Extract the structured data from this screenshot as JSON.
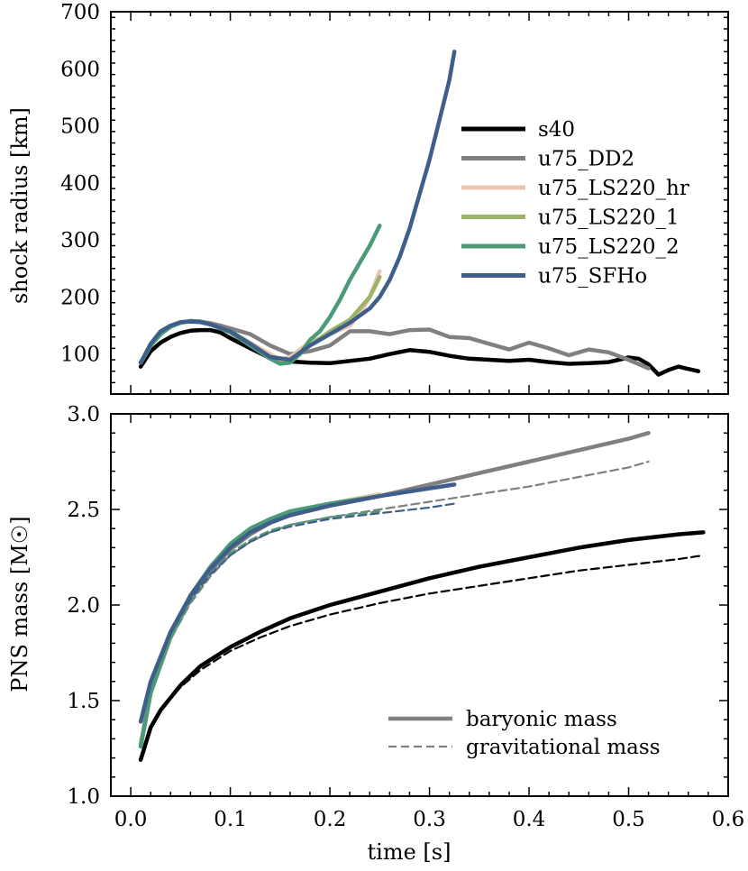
{
  "chart_data": [
    {
      "type": "line",
      "panel": "top",
      "ylabel": "shock radius [km]",
      "xlim": [
        -0.02,
        0.6
      ],
      "ylim": [
        30,
        700
      ],
      "yticks": [
        100,
        200,
        300,
        400,
        500,
        600,
        700
      ],
      "legend_position": "center-right",
      "series": [
        {
          "name": "s40",
          "color": "#000000",
          "x": [
            0.01,
            0.02,
            0.03,
            0.04,
            0.05,
            0.06,
            0.07,
            0.08,
            0.09,
            0.1,
            0.12,
            0.14,
            0.16,
            0.18,
            0.2,
            0.22,
            0.24,
            0.26,
            0.28,
            0.3,
            0.32,
            0.34,
            0.36,
            0.38,
            0.4,
            0.42,
            0.44,
            0.46,
            0.48,
            0.5,
            0.51,
            0.52,
            0.53,
            0.54,
            0.55,
            0.56,
            0.57
          ],
          "y": [
            78,
            105,
            120,
            130,
            137,
            141,
            142,
            142,
            138,
            128,
            110,
            93,
            87,
            85,
            84,
            88,
            92,
            100,
            107,
            104,
            97,
            92,
            90,
            88,
            90,
            86,
            83,
            84,
            86,
            94,
            92,
            82,
            64,
            72,
            78,
            74,
            70
          ]
        },
        {
          "name": "u75_DD2",
          "color": "#808080",
          "x": [
            0.01,
            0.02,
            0.03,
            0.04,
            0.05,
            0.06,
            0.07,
            0.08,
            0.09,
            0.1,
            0.12,
            0.14,
            0.16,
            0.18,
            0.2,
            0.22,
            0.24,
            0.26,
            0.28,
            0.3,
            0.32,
            0.34,
            0.36,
            0.38,
            0.4,
            0.42,
            0.44,
            0.46,
            0.48,
            0.5,
            0.52
          ],
          "y": [
            85,
            115,
            135,
            148,
            155,
            158,
            157,
            154,
            150,
            145,
            135,
            115,
            100,
            105,
            115,
            140,
            140,
            135,
            142,
            143,
            130,
            128,
            118,
            108,
            120,
            110,
            98,
            108,
            103,
            90,
            75
          ]
        },
        {
          "name": "u75_LS220_hr",
          "color": "#e8c6b0",
          "x": [
            0.01,
            0.02,
            0.03,
            0.04,
            0.05,
            0.06,
            0.07,
            0.08,
            0.1,
            0.12,
            0.14,
            0.15,
            0.16,
            0.17,
            0.18,
            0.2,
            0.22,
            0.23,
            0.24,
            0.25
          ],
          "y": [
            85,
            115,
            135,
            148,
            155,
            158,
            157,
            152,
            140,
            120,
            100,
            90,
            95,
            108,
            120,
            135,
            150,
            170,
            200,
            245
          ]
        },
        {
          "name": "u75_LS220_1",
          "color": "#9db369",
          "x": [
            0.01,
            0.02,
            0.03,
            0.04,
            0.05,
            0.06,
            0.07,
            0.08,
            0.1,
            0.12,
            0.14,
            0.15,
            0.16,
            0.17,
            0.18,
            0.2,
            0.21,
            0.22,
            0.23,
            0.24,
            0.25
          ],
          "y": [
            85,
            115,
            135,
            148,
            155,
            158,
            157,
            152,
            140,
            118,
            95,
            85,
            90,
            103,
            115,
            140,
            150,
            160,
            180,
            200,
            235
          ]
        },
        {
          "name": "u75_LS220_2",
          "color": "#4b9a78",
          "x": [
            0.01,
            0.02,
            0.03,
            0.04,
            0.05,
            0.06,
            0.07,
            0.08,
            0.1,
            0.12,
            0.14,
            0.15,
            0.16,
            0.17,
            0.18,
            0.19,
            0.2,
            0.21,
            0.22,
            0.23,
            0.24,
            0.25
          ],
          "y": [
            85,
            115,
            135,
            148,
            155,
            158,
            157,
            152,
            138,
            115,
            92,
            83,
            85,
            100,
            125,
            140,
            165,
            195,
            230,
            260,
            290,
            325
          ]
        },
        {
          "name": "u75_SFHo",
          "color": "#3f5f8a",
          "x": [
            0.01,
            0.02,
            0.03,
            0.04,
            0.05,
            0.06,
            0.07,
            0.08,
            0.1,
            0.12,
            0.14,
            0.16,
            0.18,
            0.2,
            0.22,
            0.24,
            0.25,
            0.26,
            0.27,
            0.28,
            0.29,
            0.3,
            0.31,
            0.32,
            0.325
          ],
          "y": [
            85,
            118,
            140,
            150,
            156,
            157,
            156,
            152,
            140,
            118,
            95,
            90,
            115,
            135,
            155,
            180,
            200,
            230,
            270,
            320,
            380,
            440,
            510,
            580,
            630
          ]
        }
      ]
    },
    {
      "type": "line",
      "panel": "bottom",
      "xlabel": "time [s]",
      "ylabel": "PNS mass [M☉]",
      "xlim": [
        -0.02,
        0.6
      ],
      "ylim": [
        1.0,
        3.0
      ],
      "xticks": [
        0.0,
        0.1,
        0.2,
        0.3,
        0.4,
        0.5,
        0.6
      ],
      "yticks": [
        1.0,
        1.5,
        2.0,
        2.5,
        3.0
      ],
      "legend_position": "bottom-right",
      "series": [
        {
          "name": "s40 baryonic",
          "color": "#000000",
          "style": "solid",
          "x": [
            0.01,
            0.02,
            0.03,
            0.05,
            0.07,
            0.1,
            0.13,
            0.16,
            0.2,
            0.25,
            0.3,
            0.35,
            0.4,
            0.45,
            0.5,
            0.55,
            0.575
          ],
          "y": [
            1.19,
            1.36,
            1.45,
            1.58,
            1.68,
            1.78,
            1.86,
            1.93,
            2.0,
            2.07,
            2.14,
            2.2,
            2.25,
            2.3,
            2.34,
            2.37,
            2.38
          ]
        },
        {
          "name": "s40 gravitational",
          "color": "#000000",
          "style": "dashed",
          "x": [
            0.01,
            0.02,
            0.03,
            0.05,
            0.07,
            0.1,
            0.13,
            0.16,
            0.2,
            0.25,
            0.3,
            0.35,
            0.4,
            0.45,
            0.5,
            0.55,
            0.575
          ],
          "y": [
            1.19,
            1.36,
            1.45,
            1.57,
            1.66,
            1.76,
            1.83,
            1.89,
            1.95,
            2.01,
            2.06,
            2.1,
            2.14,
            2.18,
            2.21,
            2.24,
            2.26
          ]
        },
        {
          "name": "u75_DD2 baryonic",
          "color": "#808080",
          "style": "solid",
          "x": [
            0.01,
            0.02,
            0.04,
            0.06,
            0.08,
            0.1,
            0.12,
            0.14,
            0.16,
            0.2,
            0.25,
            0.3,
            0.35,
            0.4,
            0.45,
            0.5,
            0.52
          ],
          "y": [
            1.27,
            1.55,
            1.83,
            2.03,
            2.18,
            2.29,
            2.37,
            2.43,
            2.47,
            2.52,
            2.57,
            2.63,
            2.69,
            2.75,
            2.81,
            2.87,
            2.9
          ]
        },
        {
          "name": "u75_DD2 gravitational",
          "color": "#808080",
          "style": "dashed",
          "x": [
            0.01,
            0.02,
            0.04,
            0.06,
            0.08,
            0.1,
            0.12,
            0.14,
            0.16,
            0.2,
            0.25,
            0.3,
            0.35,
            0.4,
            0.45,
            0.5,
            0.52
          ],
          "y": [
            1.27,
            1.55,
            1.82,
            2.01,
            2.15,
            2.26,
            2.33,
            2.38,
            2.42,
            2.46,
            2.5,
            2.54,
            2.58,
            2.62,
            2.67,
            2.72,
            2.75
          ]
        },
        {
          "name": "u75_LS220_hr baryonic",
          "color": "#e8c6b0",
          "style": "solid",
          "x": [
            0.01,
            0.02,
            0.04,
            0.06,
            0.08,
            0.1,
            0.12,
            0.14,
            0.16,
            0.2,
            0.25
          ],
          "y": [
            1.26,
            1.54,
            1.83,
            2.04,
            2.19,
            2.31,
            2.39,
            2.44,
            2.48,
            2.53,
            2.58
          ]
        },
        {
          "name": "u75_LS220_1 baryonic",
          "color": "#9db369",
          "style": "solid",
          "x": [
            0.01,
            0.02,
            0.04,
            0.06,
            0.08,
            0.1,
            0.12,
            0.14,
            0.16,
            0.2,
            0.25
          ],
          "y": [
            1.26,
            1.54,
            1.83,
            2.04,
            2.19,
            2.31,
            2.39,
            2.44,
            2.48,
            2.53,
            2.57
          ]
        },
        {
          "name": "u75_LS220_2 baryonic",
          "color": "#4b9a78",
          "style": "solid",
          "x": [
            0.01,
            0.02,
            0.04,
            0.06,
            0.08,
            0.1,
            0.12,
            0.14,
            0.16,
            0.2,
            0.25
          ],
          "y": [
            1.26,
            1.54,
            1.84,
            2.05,
            2.2,
            2.32,
            2.4,
            2.45,
            2.49,
            2.53,
            2.57
          ]
        },
        {
          "name": "u75_LS220_2 gravitational",
          "color": "#4b9a78",
          "style": "dashed",
          "x": [
            0.01,
            0.02,
            0.04,
            0.06,
            0.08,
            0.1,
            0.12,
            0.14,
            0.16,
            0.2,
            0.25
          ],
          "y": [
            1.26,
            1.54,
            1.82,
            2.02,
            2.16,
            2.27,
            2.34,
            2.39,
            2.42,
            2.46,
            2.49
          ]
        },
        {
          "name": "u75_SFHo baryonic",
          "color": "#3f5f8a",
          "style": "solid",
          "x": [
            0.01,
            0.02,
            0.04,
            0.06,
            0.08,
            0.1,
            0.12,
            0.14,
            0.16,
            0.2,
            0.25,
            0.3,
            0.325
          ],
          "y": [
            1.39,
            1.6,
            1.86,
            2.05,
            2.19,
            2.3,
            2.38,
            2.43,
            2.47,
            2.52,
            2.57,
            2.61,
            2.63
          ]
        },
        {
          "name": "u75_SFHo gravitational",
          "color": "#3f5f8a",
          "style": "dashed",
          "x": [
            0.01,
            0.02,
            0.04,
            0.06,
            0.08,
            0.1,
            0.12,
            0.14,
            0.16,
            0.2,
            0.25,
            0.3,
            0.325
          ],
          "y": [
            1.39,
            1.6,
            1.85,
            2.03,
            2.16,
            2.26,
            2.33,
            2.38,
            2.41,
            2.45,
            2.48,
            2.51,
            2.53
          ]
        }
      ]
    }
  ],
  "legend_top": [
    {
      "label": "s40",
      "color": "#000000"
    },
    {
      "label": "u75_DD2",
      "color": "#808080"
    },
    {
      "label": "u75_LS220_hr",
      "color": "#e8c6b0"
    },
    {
      "label": "u75_LS220_1",
      "color": "#9db369"
    },
    {
      "label": "u75_LS220_2",
      "color": "#4b9a78"
    },
    {
      "label": "u75_SFHo",
      "color": "#3f5f8a"
    }
  ],
  "legend_bottom": [
    {
      "label": "baryonic mass",
      "color": "#808080",
      "style": "solid"
    },
    {
      "label": "gravitational mass",
      "color": "#808080",
      "style": "dashed"
    }
  ],
  "xticklabels": [
    "0.0",
    "0.1",
    "0.2",
    "0.3",
    "0.4",
    "0.5",
    "0.6"
  ],
  "top_yticklabels": [
    "100",
    "200",
    "300",
    "400",
    "500",
    "600",
    "700"
  ],
  "bottom_yticklabels": [
    "1.0",
    "1.5",
    "2.0",
    "2.5",
    "3.0"
  ]
}
